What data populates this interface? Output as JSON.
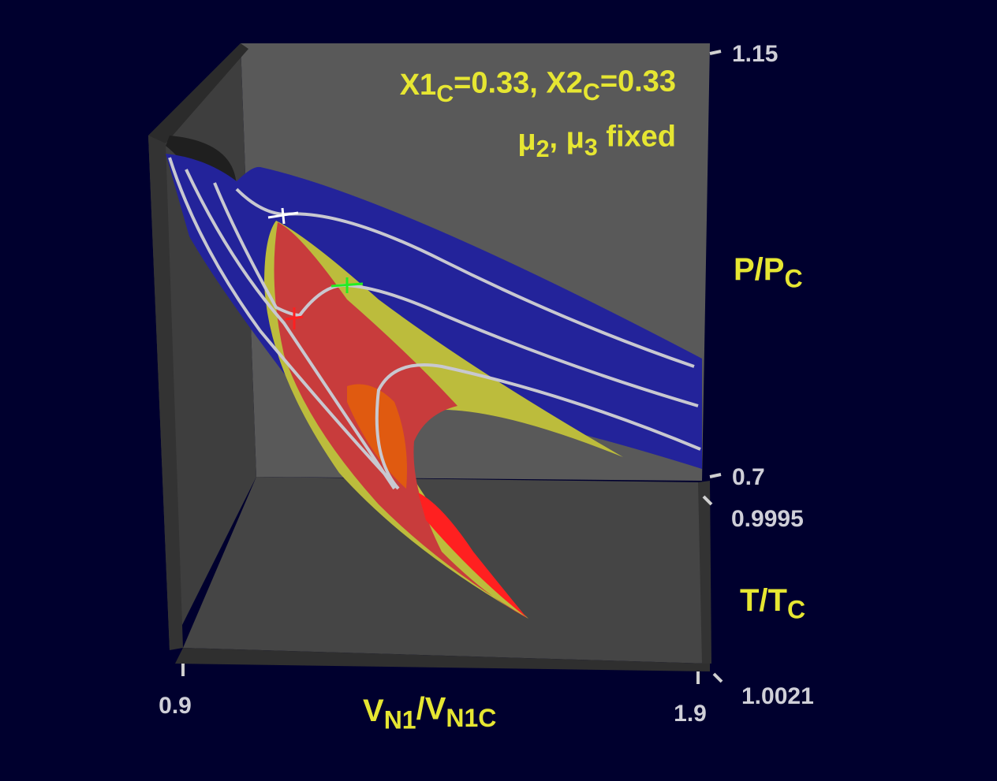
{
  "chart_data": {
    "type": "surface3d",
    "annotations": [
      [
        {
          "text": "X1"
        },
        {
          "sub": "C"
        },
        {
          "text": "=0.33,  X2"
        },
        {
          "sub": "C"
        },
        {
          "text": "=0.33"
        }
      ],
      [
        {
          "text": "μ"
        },
        {
          "sub": "2"
        },
        {
          "text": ",  μ"
        },
        {
          "sub": "3"
        },
        {
          "text": "  fixed"
        }
      ]
    ],
    "x_label": [
      {
        "text": "V"
      },
      {
        "sub": "N1"
      },
      {
        "text": "/V"
      },
      {
        "sub": "N1C"
      }
    ],
    "y_label": [
      {
        "text": "T/T"
      },
      {
        "sub": "C"
      }
    ],
    "z_label": [
      {
        "text": "P/P"
      },
      {
        "sub": "C"
      }
    ],
    "xlim": [
      0.9,
      1.9
    ],
    "xticks": [
      0.9,
      1.9
    ],
    "ylim": [
      0.9995,
      1.0021
    ],
    "yticks": [
      0.9995,
      1.0021
    ],
    "zlim": [
      0.7,
      1.15
    ],
    "zticks": [
      0.7,
      1.15
    ]
  }
}
